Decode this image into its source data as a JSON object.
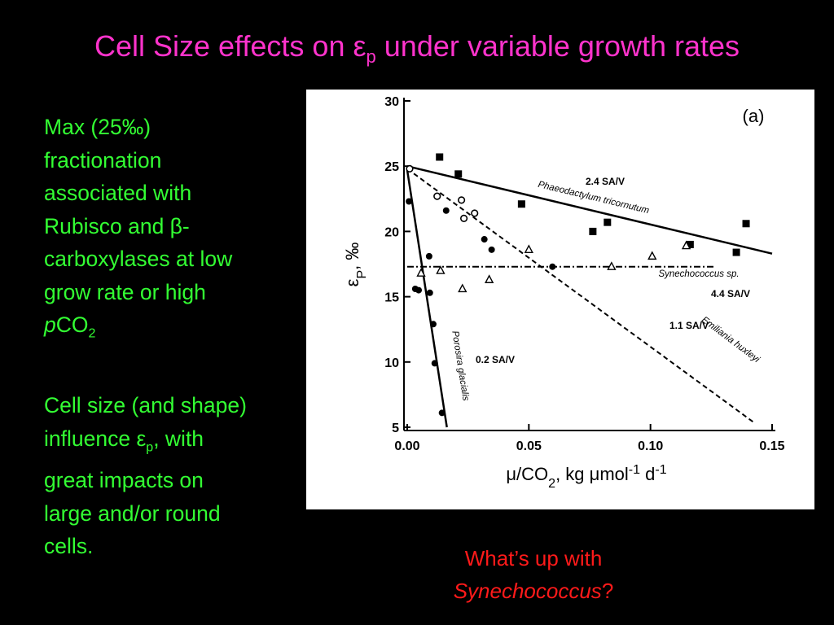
{
  "header": {
    "title": [
      "Cell Size effects on ",
      "ε",
      "p",
      " under variable growth rates"
    ]
  },
  "bullets": [
    [
      "Max (25‰) fractionation associated with Rubisco and β-carboxylases at low grow rate or high ",
      "p",
      "CO",
      "2"
    ],
    [
      "Cell size (and shape) influence ",
      "ε",
      "p",
      ", with great impacts on large and/or round cells."
    ]
  ],
  "chart_data": {
    "type": "scatter",
    "panel_label": "(a)",
    "x_label": [
      "μ/CO",
      "2",
      ", kg μmol",
      "-1",
      " d",
      "-1"
    ],
    "y_label": [
      "ε",
      "P",
      ", ‰"
    ],
    "xlim": [
      0,
      0.15
    ],
    "ylim": [
      5,
      30
    ],
    "xticks": [
      {
        "value": 0,
        "label": "0.00"
      },
      {
        "value": 0.05,
        "label": "0.05"
      },
      {
        "value": 0.1,
        "label": "0.10"
      },
      {
        "value": 0.15,
        "label": "0.15"
      }
    ],
    "yticks": [
      5,
      10,
      15,
      20,
      25,
      30
    ],
    "series": [
      {
        "marker": "square",
        "color": "#000000",
        "x": [
          0.0133,
          0.021,
          0.047,
          0.0763,
          0.0823,
          0.1163,
          0.1353,
          0.1393
        ],
        "values": [
          25.7,
          24.4,
          22.1,
          20.0,
          20.7,
          19.0,
          18.4,
          20.6
        ]
      },
      {
        "marker": "circle-open",
        "color": "#000000",
        "x": [
          0.001,
          0.0123,
          0.0223,
          0.0233,
          0.0277
        ],
        "values": [
          24.8,
          22.7,
          22.4,
          21.0,
          21.4
        ]
      },
      {
        "marker": "circle",
        "color": "#000000",
        "x": [
          0.0007,
          0.016,
          0.0317,
          0.0347,
          0.0597,
          0.009,
          0.0033,
          0.0047,
          0.0093,
          0.0107,
          0.0113,
          0.0143
        ],
        "values": [
          22.3,
          21.6,
          19.4,
          18.6,
          17.3,
          18.1,
          15.6,
          15.5,
          15.3,
          12.9,
          9.9,
          6.1
        ]
      },
      {
        "marker": "triangle-open",
        "color": "#000000",
        "x": [
          0.0057,
          0.0137,
          0.0227,
          0.0337,
          0.05,
          0.084,
          0.1007,
          0.1147
        ],
        "values": [
          16.8,
          17.0,
          15.6,
          16.3,
          18.6,
          17.3,
          18.1,
          18.9
        ]
      }
    ],
    "fits": [
      {
        "style": "solid",
        "x": [
          0,
          0.15
        ],
        "values": [
          25,
          18.3
        ]
      },
      {
        "style": "dashdot",
        "x": [
          0,
          0.1267
        ],
        "values": [
          17.3,
          17.3
        ]
      },
      {
        "style": "dashed",
        "x": [
          0,
          0.143
        ],
        "values": [
          24.8,
          5.3
        ]
      },
      {
        "style": "solid",
        "x": [
          0,
          0.0163
        ],
        "values": [
          24.7,
          5
        ]
      }
    ],
    "line_labels": [
      "Phaeodactylum tricornutum",
      "Synechococcus sp.",
      "Emiliania huxleyi",
      "Porosira glacialis"
    ],
    "sa_labels": [
      "2.4 SA/V",
      "4.4 SA/V",
      "1.1 SA/V",
      "0.2 SA/V"
    ]
  },
  "caption": [
    "What’s up with ",
    "Synechococcus",
    "?"
  ]
}
